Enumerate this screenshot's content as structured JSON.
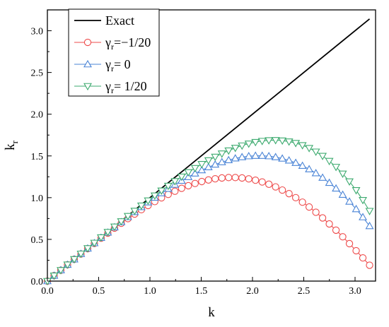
{
  "chart_data": {
    "type": "line",
    "xlabel": "k",
    "ylabel": "k",
    "ylabel_sub": "r",
    "xlim": [
      0,
      3.2
    ],
    "ylim": [
      0,
      3.25
    ],
    "xticks": [
      "0.0",
      "0.5",
      "1.0",
      "1.5",
      "2.0",
      "2.5",
      "3.0"
    ],
    "yticks": [
      "0.0",
      "0.5",
      "1.0",
      "1.5",
      "2.0",
      "2.5",
      "3.0"
    ],
    "grid": false,
    "legend_position": "top-left",
    "legend": [
      {
        "sym": "γ",
        "sub": "",
        "rest": "Exact"
      },
      {
        "sym": "γ",
        "sub": "r",
        "rest": "=−1/20"
      },
      {
        "sym": "γ",
        "sub": "r",
        "rest": "= 0"
      },
      {
        "sym": "γ",
        "sub": "r",
        "rest": "= 1/20"
      }
    ],
    "series": [
      {
        "name": "Exact",
        "color": "#000000",
        "marker": "none",
        "x": [
          0,
          3.1416
        ],
        "y": [
          0,
          3.1416
        ]
      },
      {
        "name": "γr=−1/20",
        "color": "#ee4b4b",
        "marker": "circle",
        "x": [
          0.0,
          0.0654,
          0.1309,
          0.1963,
          0.2618,
          0.3272,
          0.3927,
          0.4581,
          0.5236,
          0.589,
          0.6545,
          0.7199,
          0.7854,
          0.8508,
          0.9163,
          0.9817,
          1.0472,
          1.1126,
          1.1781,
          1.2435,
          1.309,
          1.3744,
          1.4399,
          1.5053,
          1.5708,
          1.6362,
          1.7017,
          1.7671,
          1.8326,
          1.898,
          1.9635,
          2.0289,
          2.0944,
          2.1598,
          2.2253,
          2.2907,
          2.3562,
          2.4216,
          2.4871,
          2.5525,
          2.618,
          2.6834,
          2.7489,
          2.8143,
          2.8798,
          2.9452,
          3.0107,
          3.0761,
          3.1416
        ],
        "y": [
          0.0,
          0.065,
          0.13,
          0.196,
          0.261,
          0.325,
          0.389,
          0.452,
          0.514,
          0.575,
          0.635,
          0.693,
          0.749,
          0.803,
          0.856,
          0.906,
          0.953,
          0.998,
          1.039,
          1.077,
          1.112,
          1.143,
          1.17,
          1.193,
          1.212,
          1.226,
          1.236,
          1.241,
          1.241,
          1.236,
          1.225,
          1.209,
          1.188,
          1.161,
          1.129,
          1.091,
          1.048,
          1.0,
          0.946,
          0.888,
          0.825,
          0.757,
          0.685,
          0.61,
          0.531,
          0.449,
          0.364,
          0.278,
          0.19
        ]
      },
      {
        "name": "γr= 0",
        "color": "#4a84d6",
        "marker": "triangle-up",
        "x": [
          0.0,
          0.0654,
          0.1309,
          0.1963,
          0.2618,
          0.3272,
          0.3927,
          0.4581,
          0.5236,
          0.589,
          0.6545,
          0.7199,
          0.7854,
          0.8508,
          0.9163,
          0.9817,
          1.0472,
          1.1126,
          1.1781,
          1.2435,
          1.309,
          1.3744,
          1.4399,
          1.5053,
          1.5708,
          1.6362,
          1.7017,
          1.7671,
          1.8326,
          1.898,
          1.9635,
          2.0289,
          2.0944,
          2.1598,
          2.2253,
          2.2907,
          2.3562,
          2.4216,
          2.4871,
          2.5525,
          2.618,
          2.6834,
          2.7489,
          2.8143,
          2.8798,
          2.9452,
          3.0107,
          3.0761,
          3.1416
        ],
        "y": [
          0.0,
          0.065,
          0.131,
          0.196,
          0.261,
          0.326,
          0.391,
          0.455,
          0.519,
          0.582,
          0.645,
          0.707,
          0.768,
          0.828,
          0.887,
          0.944,
          1.0,
          1.054,
          1.106,
          1.156,
          1.203,
          1.248,
          1.29,
          1.329,
          1.365,
          1.397,
          1.426,
          1.45,
          1.471,
          1.486,
          1.497,
          1.502,
          1.502,
          1.497,
          1.486,
          1.469,
          1.446,
          1.417,
          1.382,
          1.341,
          1.293,
          1.239,
          1.178,
          1.11,
          1.035,
          0.953,
          0.863,
          0.766,
          0.66
        ]
      },
      {
        "name": "γr= 1/20",
        "color": "#3daa6f",
        "marker": "triangle-down",
        "x": [
          0.0,
          0.0654,
          0.1309,
          0.1963,
          0.2618,
          0.3272,
          0.3927,
          0.4581,
          0.5236,
          0.589,
          0.6545,
          0.7199,
          0.7854,
          0.8508,
          0.9163,
          0.9817,
          1.0472,
          1.1126,
          1.1781,
          1.2435,
          1.309,
          1.3744,
          1.4399,
          1.5053,
          1.5708,
          1.6362,
          1.7017,
          1.7671,
          1.8326,
          1.898,
          1.9635,
          2.0289,
          2.0944,
          2.1598,
          2.2253,
          2.2907,
          2.3562,
          2.4216,
          2.4871,
          2.5525,
          2.618,
          2.6834,
          2.7489,
          2.8143,
          2.8798,
          2.9452,
          3.0107,
          3.0761,
          3.1416
        ],
        "y": [
          0.0,
          0.065,
          0.131,
          0.197,
          0.262,
          0.328,
          0.393,
          0.458,
          0.523,
          0.588,
          0.652,
          0.716,
          0.779,
          0.842,
          0.904,
          0.965,
          1.025,
          1.084,
          1.141,
          1.197,
          1.251,
          1.304,
          1.354,
          1.402,
          1.447,
          1.489,
          1.528,
          1.564,
          1.596,
          1.624,
          1.647,
          1.666,
          1.679,
          1.687,
          1.689,
          1.684,
          1.672,
          1.654,
          1.628,
          1.594,
          1.551,
          1.5,
          1.439,
          1.368,
          1.287,
          1.194,
          1.089,
          0.971,
          0.84
        ]
      }
    ]
  }
}
